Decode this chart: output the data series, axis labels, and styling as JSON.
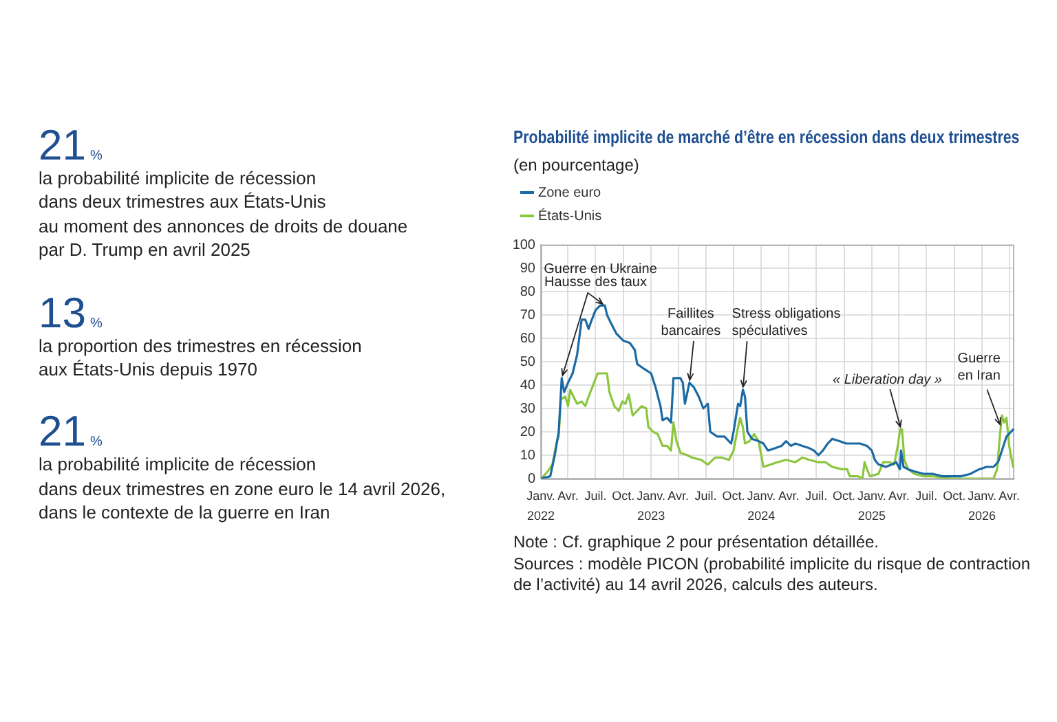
{
  "chart_data": [
    {
      "type": "other",
      "annotations": [
        "21%",
        "la probabilité implicite de récession\ndans deux trimestres aux États-Unis\nau moment des annonces de droits de douane\npar D. Trump en avril 2025",
        "13%",
        "la proportion des trimestres en récession\naux États-Unis depuis 1970",
        "21%",
        "la probabilité implicite de récession\ndans deux trimestres en zone euro le 14 avril 2026,\ndans le contexte de la guerre en Iran"
      ]
    },
    {
      "type": "line",
      "title": "Probabilité implicite de marché d’être en récession dans deux trimestres",
      "subtitle": "(en pourcentage)",
      "series": [
        {
          "name": "Zone euro",
          "color": "#1b6aa5",
          "x": [
            "2022-01-03",
            "2022-02-01",
            "2022-02-16",
            "2022-03-01",
            "2022-03-11",
            "2022-03-19",
            "2022-04-01",
            "2022-04-16",
            "2022-05-01",
            "2022-05-16",
            "2022-05-28",
            "2022-06-08",
            "2022-06-16",
            "2022-07-01",
            "2022-07-16",
            "2022-08-01",
            "2022-08-08",
            "2022-08-23",
            "2022-09-08",
            "2022-10-01",
            "2022-10-23",
            "2022-11-08",
            "2022-11-16",
            "2022-12-08",
            "2023-01-01",
            "2023-01-16",
            "2023-02-01",
            "2023-02-08",
            "2023-02-23",
            "2023-03-08",
            "2023-03-16",
            "2023-04-08",
            "2023-04-16",
            "2023-04-23",
            "2023-05-08",
            "2023-05-23",
            "2023-06-08",
            "2023-06-23",
            "2023-07-08",
            "2023-07-16",
            "2023-08-08",
            "2023-09-01",
            "2023-09-23",
            "2023-10-01",
            "2023-10-16",
            "2023-10-23",
            "2023-11-01",
            "2023-11-08",
            "2023-11-16",
            "2023-12-01",
            "2023-12-23",
            "2024-01-08",
            "2024-01-23",
            "2024-02-16",
            "2024-03-08",
            "2024-03-23",
            "2024-04-08",
            "2024-04-23",
            "2024-05-16",
            "2024-06-08",
            "2024-06-23",
            "2024-07-08",
            "2024-07-23",
            "2024-08-08",
            "2024-08-23",
            "2024-09-16",
            "2024-10-08",
            "2024-11-23",
            "2024-12-16",
            "2025-01-01",
            "2025-01-11",
            "2025-01-23",
            "2025-02-16",
            "2025-03-08",
            "2025-03-23",
            "2025-04-04",
            "2025-04-08",
            "2025-04-16",
            "2025-05-01",
            "2025-05-23",
            "2025-06-23",
            "2025-07-23",
            "2025-08-23",
            "2025-09-23",
            "2025-10-23",
            "2025-11-23",
            "2025-12-23",
            "2026-01-16",
            "2026-02-08",
            "2026-02-23",
            "2026-03-08",
            "2026-03-23",
            "2026-04-14"
          ],
          "values": [
            0,
            1,
            10,
            20,
            43,
            37,
            41,
            45,
            53,
            68,
            68,
            64,
            67,
            72,
            74,
            74,
            70,
            66,
            62,
            59,
            58,
            55,
            49,
            47,
            45,
            39,
            31,
            25,
            26,
            24,
            43,
            43,
            41,
            32,
            41,
            39,
            35,
            30,
            32,
            20,
            18,
            18,
            15,
            20,
            32,
            31,
            38,
            35,
            20,
            17,
            16,
            15,
            12,
            13,
            14,
            16,
            14,
            15,
            14,
            13,
            12,
            10,
            12,
            15,
            17,
            16,
            15,
            15,
            14,
            12,
            8,
            6,
            5,
            6,
            7,
            4,
            12,
            5,
            4,
            3,
            2,
            2,
            1,
            1,
            1,
            2,
            4,
            5,
            5,
            7,
            12,
            18,
            21
          ]
        },
        {
          "name": "États-Unis",
          "color": "#8cc63e",
          "x": [
            "2022-01-03",
            "2022-01-23",
            "2022-02-08",
            "2022-02-23",
            "2022-03-01",
            "2022-03-08",
            "2022-03-23",
            "2022-04-01",
            "2022-04-08",
            "2022-04-23",
            "2022-05-01",
            "2022-05-16",
            "2022-05-28",
            "2022-06-08",
            "2022-06-23",
            "2022-07-08",
            "2022-07-23",
            "2022-08-08",
            "2022-08-16",
            "2022-09-01",
            "2022-09-16",
            "2022-09-28",
            "2022-10-08",
            "2022-10-19",
            "2022-11-01",
            "2022-11-16",
            "2022-12-01",
            "2022-12-16",
            "2022-12-23",
            "2023-01-08",
            "2023-01-23",
            "2023-02-08",
            "2023-02-23",
            "2023-03-08",
            "2023-03-16",
            "2023-03-26",
            "2023-04-08",
            "2023-05-01",
            "2023-05-16",
            "2023-06-16",
            "2023-07-08",
            "2023-08-01",
            "2023-08-23",
            "2023-09-16",
            "2023-10-01",
            "2023-10-16",
            "2023-10-23",
            "2023-11-01",
            "2023-11-08",
            "2023-11-23",
            "2023-12-08",
            "2023-12-23",
            "2024-01-08",
            "2024-02-01",
            "2024-02-23",
            "2024-03-23",
            "2024-04-23",
            "2024-05-16",
            "2024-06-08",
            "2024-07-08",
            "2024-08-01",
            "2024-08-23",
            "2024-09-23",
            "2024-10-11",
            "2024-10-20",
            "2024-11-16",
            "2024-12-01",
            "2024-12-08",
            "2024-12-16",
            "2024-12-26",
            "2025-01-23",
            "2025-02-08",
            "2025-03-01",
            "2025-03-16",
            "2025-03-28",
            "2025-04-05",
            "2025-04-11",
            "2025-04-19",
            "2025-05-01",
            "2025-05-23",
            "2025-06-23",
            "2025-07-23",
            "2025-09-23",
            "2025-12-08",
            "2026-02-08",
            "2026-02-20",
            "2026-03-01",
            "2026-03-08",
            "2026-03-16",
            "2026-03-23",
            "2026-04-01",
            "2026-04-14"
          ],
          "values": [
            0,
            3,
            6,
            16,
            18,
            34,
            35,
            31,
            38,
            34,
            32,
            33,
            31,
            35,
            40,
            45,
            45,
            45,
            37,
            31,
            29,
            33,
            32,
            36,
            27,
            29,
            31,
            30,
            22,
            20,
            19,
            14,
            14,
            12,
            24,
            16,
            11,
            10,
            9,
            8,
            6,
            9,
            9,
            8,
            12,
            22,
            26,
            22,
            15,
            16,
            19,
            16,
            5,
            6,
            7,
            8,
            7,
            9,
            8,
            7,
            7,
            5,
            4,
            4,
            1,
            1,
            0,
            7,
            4,
            1,
            2,
            7,
            7,
            6,
            14,
            21,
            21,
            8,
            4,
            2,
            1,
            1,
            0,
            0,
            0,
            4,
            18,
            27,
            24,
            26,
            14,
            5
          ]
        }
      ],
      "xlim": [
        "2022-01-01",
        "2026-04-18"
      ],
      "xticks": [
        {
          "value": "2022-01",
          "label": "Janv.\n2022"
        },
        {
          "value": "2022-04",
          "label": "Avr."
        },
        {
          "value": "2022-07",
          "label": "Juil."
        },
        {
          "value": "2022-10",
          "label": "Oct."
        },
        {
          "value": "2023-01",
          "label": "Janv.\n2023"
        },
        {
          "value": "2023-04",
          "label": "Avr."
        },
        {
          "value": "2023-07",
          "label": "Juil."
        },
        {
          "value": "2023-10",
          "label": "Oct."
        },
        {
          "value": "2024-01",
          "label": "Janv.\n2024"
        },
        {
          "value": "2024-04",
          "label": "Avr."
        },
        {
          "value": "2024-07",
          "label": "Juil."
        },
        {
          "value": "2024-10",
          "label": "Oct."
        },
        {
          "value": "2025-01",
          "label": "Janv.\n2025"
        },
        {
          "value": "2025-04",
          "label": "Avr."
        },
        {
          "value": "2025-07",
          "label": "Juil."
        },
        {
          "value": "2025-10",
          "label": "Oct."
        },
        {
          "value": "2026-01",
          "label": "Janv.\n2026"
        },
        {
          "value": "2026-04",
          "label": "Avr."
        }
      ],
      "ylim": [
        0,
        100
      ],
      "yticks": [
        0,
        10,
        20,
        30,
        40,
        50,
        60,
        70,
        80,
        90,
        100
      ],
      "grid": true,
      "legend": "top left",
      "annotations": [
        {
          "text": "Guerre en Ukraine",
          "x": "2022-03-11",
          "y": 43
        },
        {
          "text": "Hausse des taux",
          "x": "2022-08-01",
          "y": 74
        },
        {
          "text": "Faillites\nbancaires",
          "x": "2023-05-08",
          "y": 41
        },
        {
          "text": "Stress obligations\nspéculatives",
          "x": "2023-11-01",
          "y": 38
        },
        {
          "text": "« Liberation day »",
          "x": "2025-04-08",
          "y": 21
        },
        {
          "text": "Guerre\nen Iran",
          "x": "2026-03-05",
          "y": 22
        },
        "Note : Cf. graphique 2 pour présentation détaillée.",
        "Sources : modèle PICON (probabilité implicite du risque de contraction de l’activité) au 14 avril 2026, calculs des auteurs."
      ]
    }
  ]
}
